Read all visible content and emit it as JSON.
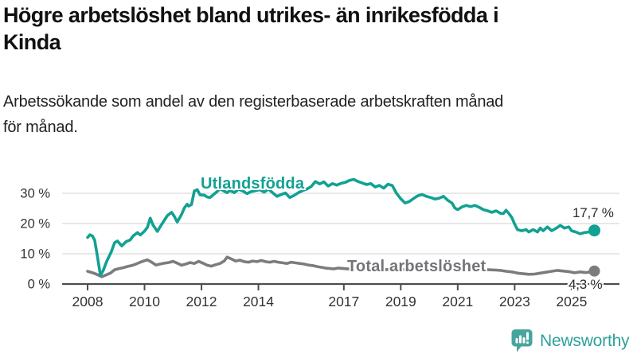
{
  "header": {
    "title": "Högre arbetslöshet bland utrikes- än inrikesfödda i\nKinda",
    "subtitle": "Arbetssökande som andel av den registerbaserade arbetskraften månad\nför månad."
  },
  "chart_data": {
    "type": "line",
    "title": "Högre arbetslöshet bland utrikes- än inrikesfödda i Kinda",
    "subtitle": "Arbetssökande som andel av den registerbaserade arbetskraften månad för månad.",
    "xlabel": "",
    "ylabel": "",
    "grid": true,
    "ylim": [
      0,
      36
    ],
    "xlim": [
      2007.9,
      2026.7
    ],
    "y_axis": {
      "ticks": [
        0,
        10,
        20,
        30
      ],
      "labels": [
        "0 %",
        "10 %",
        "20 %",
        "30 %"
      ]
    },
    "x_axis": {
      "ticks": [
        2008,
        2010,
        2012,
        2014,
        2017,
        2019,
        2021,
        2023,
        2025
      ],
      "labels": [
        "2008",
        "2010",
        "2012",
        "2014",
        "2017",
        "2019",
        "2021",
        "2023",
        "2025"
      ]
    },
    "colors": {
      "grid": "#d9d9d9",
      "axis": "#4d4d4d",
      "tick_text": "#333333"
    },
    "series": [
      {
        "name": "Utlandsfödda",
        "color": "#12a193",
        "end_label": "17,7 %",
        "end_value": 17.7,
        "points": [
          [
            2008.0,
            15.4
          ],
          [
            2008.08,
            16.3
          ],
          [
            2008.17,
            15.9
          ],
          [
            2008.25,
            14.5
          ],
          [
            2008.33,
            10.0
          ],
          [
            2008.45,
            2.9
          ],
          [
            2008.55,
            4.5
          ],
          [
            2008.67,
            7.5
          ],
          [
            2008.83,
            10.6
          ],
          [
            2008.95,
            13.7
          ],
          [
            2009.05,
            14.2
          ],
          [
            2009.2,
            12.6
          ],
          [
            2009.35,
            14.0
          ],
          [
            2009.5,
            14.6
          ],
          [
            2009.6,
            15.9
          ],
          [
            2009.75,
            17.0
          ],
          [
            2009.85,
            16.2
          ],
          [
            2010.0,
            17.5
          ],
          [
            2010.1,
            18.7
          ],
          [
            2010.2,
            21.8
          ],
          [
            2010.3,
            19.5
          ],
          [
            2010.45,
            17.4
          ],
          [
            2010.6,
            19.7
          ],
          [
            2010.8,
            22.6
          ],
          [
            2010.95,
            23.7
          ],
          [
            2011.05,
            22.3
          ],
          [
            2011.15,
            20.5
          ],
          [
            2011.3,
            23.0
          ],
          [
            2011.4,
            25.2
          ],
          [
            2011.5,
            26.4
          ],
          [
            2011.55,
            25.8
          ],
          [
            2011.65,
            26.3
          ],
          [
            2011.75,
            30.8
          ],
          [
            2011.85,
            31.2
          ],
          [
            2011.95,
            29.5
          ],
          [
            2012.1,
            29.4
          ],
          [
            2012.2,
            28.8
          ],
          [
            2012.3,
            28.6
          ],
          [
            2012.45,
            29.8
          ],
          [
            2012.55,
            30.6
          ],
          [
            2012.65,
            31.5
          ],
          [
            2012.8,
            30.7
          ],
          [
            2012.9,
            30.2
          ],
          [
            2013.0,
            31.0
          ],
          [
            2013.15,
            30.2
          ],
          [
            2013.3,
            31.3
          ],
          [
            2013.45,
            30.8
          ],
          [
            2013.6,
            29.9
          ],
          [
            2013.75,
            30.6
          ],
          [
            2013.9,
            30.9
          ],
          [
            2014.05,
            31.2
          ],
          [
            2014.2,
            30.4
          ],
          [
            2014.35,
            31.4
          ],
          [
            2014.5,
            30.2
          ],
          [
            2014.65,
            29.0
          ],
          [
            2014.8,
            29.6
          ],
          [
            2014.95,
            30.1
          ],
          [
            2015.1,
            28.6
          ],
          [
            2015.25,
            29.3
          ],
          [
            2015.4,
            30.2
          ],
          [
            2015.55,
            30.9
          ],
          [
            2015.7,
            31.4
          ],
          [
            2015.85,
            32.2
          ],
          [
            2016.0,
            33.9
          ],
          [
            2016.15,
            33.1
          ],
          [
            2016.3,
            33.8
          ],
          [
            2016.45,
            32.4
          ],
          [
            2016.6,
            33.2
          ],
          [
            2016.75,
            32.7
          ],
          [
            2016.9,
            33.3
          ],
          [
            2017.05,
            33.6
          ],
          [
            2017.2,
            34.3
          ],
          [
            2017.35,
            34.6
          ],
          [
            2017.5,
            33.9
          ],
          [
            2017.65,
            33.4
          ],
          [
            2017.8,
            32.9
          ],
          [
            2017.95,
            33.2
          ],
          [
            2018.1,
            32.1
          ],
          [
            2018.25,
            32.6
          ],
          [
            2018.4,
            31.7
          ],
          [
            2018.55,
            33.0
          ],
          [
            2018.7,
            32.6
          ],
          [
            2018.85,
            30.0
          ],
          [
            2019.0,
            28.2
          ],
          [
            2019.15,
            26.8
          ],
          [
            2019.3,
            27.3
          ],
          [
            2019.45,
            28.3
          ],
          [
            2019.6,
            29.2
          ],
          [
            2019.75,
            29.6
          ],
          [
            2019.9,
            29.0
          ],
          [
            2020.05,
            28.6
          ],
          [
            2020.2,
            28.1
          ],
          [
            2020.35,
            28.4
          ],
          [
            2020.5,
            29.0
          ],
          [
            2020.65,
            27.7
          ],
          [
            2020.8,
            26.8
          ],
          [
            2020.9,
            25.1
          ],
          [
            2021.0,
            24.6
          ],
          [
            2021.15,
            25.5
          ],
          [
            2021.3,
            26.0
          ],
          [
            2021.45,
            25.6
          ],
          [
            2021.6,
            26.0
          ],
          [
            2021.75,
            25.4
          ],
          [
            2021.9,
            24.6
          ],
          [
            2022.05,
            24.2
          ],
          [
            2022.2,
            23.7
          ],
          [
            2022.35,
            24.2
          ],
          [
            2022.5,
            23.4
          ],
          [
            2022.6,
            23.3
          ],
          [
            2022.7,
            24.4
          ],
          [
            2022.8,
            23.3
          ],
          [
            2022.9,
            22.0
          ],
          [
            2023.0,
            19.8
          ],
          [
            2023.1,
            18.0
          ],
          [
            2023.25,
            17.6
          ],
          [
            2023.4,
            18.0
          ],
          [
            2023.5,
            17.2
          ],
          [
            2023.65,
            18.0
          ],
          [
            2023.8,
            17.2
          ],
          [
            2023.9,
            18.5
          ],
          [
            2024.0,
            17.6
          ],
          [
            2024.15,
            18.9
          ],
          [
            2024.3,
            17.6
          ],
          [
            2024.45,
            18.4
          ],
          [
            2024.6,
            19.4
          ],
          [
            2024.75,
            18.5
          ],
          [
            2024.9,
            18.9
          ],
          [
            2025.0,
            17.6
          ],
          [
            2025.15,
            17.2
          ],
          [
            2025.3,
            16.6
          ],
          [
            2025.45,
            17.0
          ],
          [
            2025.6,
            17.2
          ],
          [
            2025.8,
            17.7
          ]
        ]
      },
      {
        "name": "Total arbetslöshet",
        "color": "#7c7c80",
        "end_label": "4,3 %",
        "end_value": 4.3,
        "points": [
          [
            2008.0,
            4.2
          ],
          [
            2008.15,
            3.8
          ],
          [
            2008.3,
            3.3
          ],
          [
            2008.5,
            2.4
          ],
          [
            2008.65,
            3.0
          ],
          [
            2008.8,
            3.6
          ],
          [
            2008.95,
            4.7
          ],
          [
            2009.1,
            5.1
          ],
          [
            2009.25,
            5.4
          ],
          [
            2009.4,
            5.8
          ],
          [
            2009.55,
            6.1
          ],
          [
            2009.7,
            6.6
          ],
          [
            2009.85,
            7.2
          ],
          [
            2010.0,
            7.7
          ],
          [
            2010.1,
            8.0
          ],
          [
            2010.25,
            7.2
          ],
          [
            2010.4,
            6.3
          ],
          [
            2010.55,
            6.6
          ],
          [
            2010.7,
            6.9
          ],
          [
            2010.85,
            7.1
          ],
          [
            2011.0,
            7.5
          ],
          [
            2011.15,
            6.9
          ],
          [
            2011.3,
            6.2
          ],
          [
            2011.45,
            6.6
          ],
          [
            2011.6,
            7.1
          ],
          [
            2011.75,
            6.8
          ],
          [
            2011.9,
            7.5
          ],
          [
            2012.05,
            6.9
          ],
          [
            2012.2,
            6.2
          ],
          [
            2012.35,
            5.9
          ],
          [
            2012.5,
            6.4
          ],
          [
            2012.65,
            6.8
          ],
          [
            2012.8,
            7.6
          ],
          [
            2012.9,
            8.9
          ],
          [
            2013.05,
            8.3
          ],
          [
            2013.2,
            7.6
          ],
          [
            2013.35,
            7.9
          ],
          [
            2013.5,
            7.4
          ],
          [
            2013.65,
            7.2
          ],
          [
            2013.8,
            7.6
          ],
          [
            2013.95,
            7.4
          ],
          [
            2014.1,
            7.8
          ],
          [
            2014.25,
            7.4
          ],
          [
            2014.4,
            7.2
          ],
          [
            2014.55,
            7.5
          ],
          [
            2014.7,
            7.2
          ],
          [
            2014.85,
            7.0
          ],
          [
            2015.0,
            6.8
          ],
          [
            2015.15,
            7.2
          ],
          [
            2015.3,
            7.0
          ],
          [
            2015.45,
            6.8
          ],
          [
            2015.6,
            6.6
          ],
          [
            2015.75,
            6.3
          ],
          [
            2015.9,
            6.1
          ],
          [
            2016.05,
            5.8
          ],
          [
            2016.35,
            5.3
          ],
          [
            2016.65,
            5.0
          ],
          [
            2016.8,
            5.3
          ],
          [
            2017.0,
            5.1
          ],
          [
            2017.3,
            4.9
          ],
          [
            2017.6,
            5.0
          ],
          [
            2017.9,
            4.8
          ],
          [
            2018.2,
            4.7
          ],
          [
            2018.5,
            4.8
          ],
          [
            2018.8,
            4.7
          ],
          [
            2019.1,
            4.8
          ],
          [
            2019.4,
            5.0
          ],
          [
            2019.7,
            4.9
          ],
          [
            2020.0,
            5.2
          ],
          [
            2020.3,
            5.6
          ],
          [
            2020.6,
            5.4
          ],
          [
            2020.9,
            5.2
          ],
          [
            2021.2,
            5.1
          ],
          [
            2021.5,
            4.9
          ],
          [
            2021.8,
            4.8
          ],
          [
            2022.1,
            4.7
          ],
          [
            2022.35,
            4.6
          ],
          [
            2022.5,
            4.5
          ],
          [
            2022.7,
            4.2
          ],
          [
            2022.9,
            4.0
          ],
          [
            2023.1,
            3.6
          ],
          [
            2023.3,
            3.4
          ],
          [
            2023.5,
            3.2
          ],
          [
            2023.7,
            3.3
          ],
          [
            2023.9,
            3.6
          ],
          [
            2024.1,
            3.9
          ],
          [
            2024.3,
            4.2
          ],
          [
            2024.5,
            4.5
          ],
          [
            2024.7,
            4.3
          ],
          [
            2024.9,
            4.1
          ],
          [
            2025.1,
            3.7
          ],
          [
            2025.3,
            4.0
          ],
          [
            2025.5,
            3.8
          ],
          [
            2025.65,
            4.0
          ],
          [
            2025.8,
            4.3
          ]
        ]
      }
    ]
  },
  "logo": {
    "text": "Newsworthy",
    "icon": "newsworthy-speech-bubble-bar-chart-icon",
    "icon_color": "#48a49e",
    "text_color": "#2da19a"
  }
}
